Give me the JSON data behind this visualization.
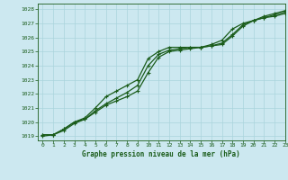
{
  "title": "Graphe pression niveau de la mer (hPa)",
  "background_color": "#cce8f0",
  "grid_color": "#aad4dc",
  "line_color": "#1a5c1a",
  "xlim": [
    -0.5,
    23
  ],
  "ylim": [
    1018.7,
    1028.4
  ],
  "yticks": [
    1019,
    1020,
    1021,
    1022,
    1023,
    1024,
    1025,
    1026,
    1027,
    1028
  ],
  "xticks": [
    0,
    1,
    2,
    3,
    4,
    5,
    6,
    7,
    8,
    9,
    10,
    11,
    12,
    13,
    14,
    15,
    16,
    17,
    18,
    19,
    20,
    21,
    22,
    23
  ],
  "series_main": [
    1019.1,
    1019.1,
    1019.5,
    1020.0,
    1020.2,
    1020.8,
    1021.3,
    1021.7,
    1022.1,
    1022.6,
    1024.0,
    1024.8,
    1025.1,
    1025.2,
    1025.3,
    1025.3,
    1025.4,
    1025.6,
    1026.2,
    1026.9,
    1027.2,
    1027.4,
    1027.6,
    1027.8
  ],
  "series_upper": [
    1019.1,
    1019.1,
    1019.5,
    1020.0,
    1020.3,
    1021.0,
    1021.8,
    1022.2,
    1022.6,
    1023.0,
    1024.5,
    1025.0,
    1025.3,
    1025.3,
    1025.3,
    1025.3,
    1025.5,
    1025.8,
    1026.6,
    1027.0,
    1027.2,
    1027.5,
    1027.7,
    1027.9
  ],
  "series_lower": [
    1019.0,
    1019.1,
    1019.4,
    1019.9,
    1020.2,
    1020.7,
    1021.2,
    1021.5,
    1021.8,
    1022.2,
    1023.5,
    1024.6,
    1025.0,
    1025.1,
    1025.2,
    1025.3,
    1025.4,
    1025.5,
    1026.1,
    1026.8,
    1027.2,
    1027.4,
    1027.5,
    1027.7
  ]
}
